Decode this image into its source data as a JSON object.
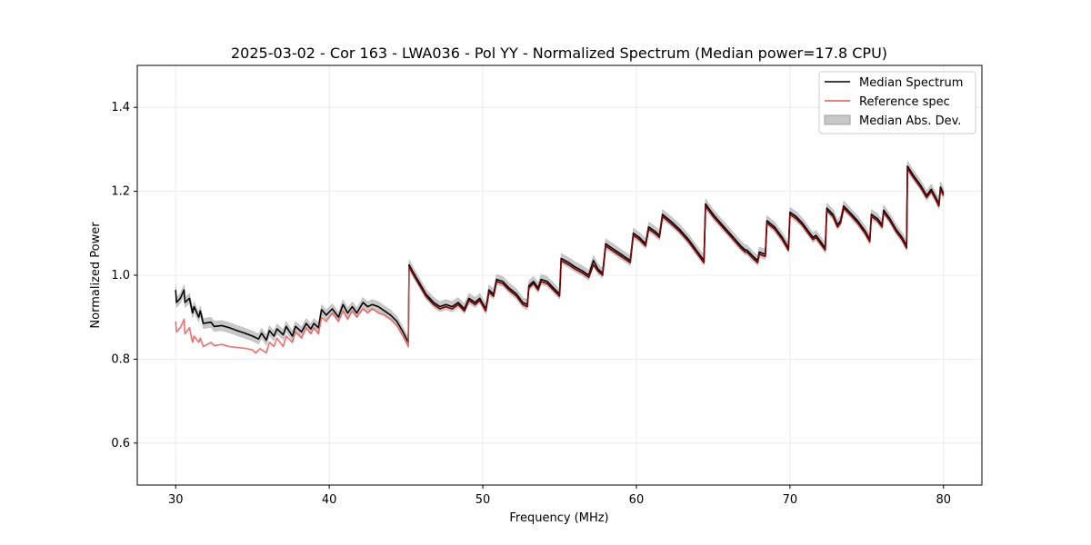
{
  "chart_data": {
    "type": "line",
    "title": "2025-03-02 - Cor 163 - LWA036 - Pol YY - Normalized Spectrum (Median power=17.8 CPU)",
    "xlabel": "Frequency (MHz)",
    "ylabel": "Normalized Power",
    "xlim": [
      27.5,
      82.5
    ],
    "ylim": [
      0.5,
      1.5
    ],
    "xticks": [
      30,
      40,
      50,
      60,
      70,
      80
    ],
    "yticks": [
      0.6,
      0.8,
      1.0,
      1.2,
      1.4
    ],
    "grid": true,
    "legend_position": "top-right",
    "colors": {
      "median": "#000000",
      "reference": "#ee5555",
      "mad": "#c8c8c8",
      "overlap": "#7a0000"
    },
    "series": [
      {
        "name": "Median Spectrum",
        "points": [
          [
            30.0,
            0.965
          ],
          [
            30.05,
            0.935
          ],
          [
            30.3,
            0.945
          ],
          [
            30.55,
            0.965
          ],
          [
            30.6,
            0.935
          ],
          [
            30.9,
            0.945
          ],
          [
            31.1,
            0.91
          ],
          [
            31.2,
            0.925
          ],
          [
            31.5,
            0.9
          ],
          [
            31.6,
            0.915
          ],
          [
            31.8,
            0.885
          ],
          [
            32.3,
            0.888
          ],
          [
            32.5,
            0.878
          ],
          [
            33.0,
            0.88
          ],
          [
            33.5,
            0.875
          ],
          [
            34.0,
            0.868
          ],
          [
            34.5,
            0.862
          ],
          [
            35.0,
            0.855
          ],
          [
            35.4,
            0.848
          ],
          [
            35.6,
            0.862
          ],
          [
            35.9,
            0.845
          ],
          [
            36.1,
            0.868
          ],
          [
            36.4,
            0.855
          ],
          [
            36.6,
            0.872
          ],
          [
            37.0,
            0.858
          ],
          [
            37.2,
            0.878
          ],
          [
            37.6,
            0.855
          ],
          [
            37.8,
            0.878
          ],
          [
            38.2,
            0.865
          ],
          [
            38.5,
            0.885
          ],
          [
            38.8,
            0.872
          ],
          [
            39.0,
            0.885
          ],
          [
            39.3,
            0.875
          ],
          [
            39.5,
            0.918
          ],
          [
            39.8,
            0.905
          ],
          [
            40.2,
            0.92
          ],
          [
            40.6,
            0.9
          ],
          [
            40.9,
            0.93
          ],
          [
            41.2,
            0.91
          ],
          [
            41.5,
            0.925
          ],
          [
            41.8,
            0.91
          ],
          [
            42.2,
            0.935
          ],
          [
            42.5,
            0.925
          ],
          [
            42.8,
            0.93
          ],
          [
            43.2,
            0.925
          ],
          [
            43.6,
            0.915
          ],
          [
            44.0,
            0.905
          ],
          [
            44.4,
            0.89
          ],
          [
            44.8,
            0.865
          ],
          [
            45.15,
            0.84
          ],
          [
            45.2,
            1.025
          ],
          [
            45.5,
            1.005
          ],
          [
            45.9,
            0.98
          ],
          [
            46.3,
            0.955
          ],
          [
            46.8,
            0.935
          ],
          [
            47.2,
            0.925
          ],
          [
            47.6,
            0.93
          ],
          [
            48.0,
            0.925
          ],
          [
            48.4,
            0.935
          ],
          [
            48.8,
            0.92
          ],
          [
            49.1,
            0.945
          ],
          [
            49.5,
            0.935
          ],
          [
            49.8,
            0.945
          ],
          [
            50.2,
            0.92
          ],
          [
            50.4,
            0.965
          ],
          [
            50.7,
            0.955
          ],
          [
            50.9,
            0.99
          ],
          [
            51.3,
            0.985
          ],
          [
            51.7,
            0.97
          ],
          [
            52.2,
            0.955
          ],
          [
            52.6,
            0.935
          ],
          [
            52.9,
            0.93
          ],
          [
            53.0,
            0.975
          ],
          [
            53.3,
            0.985
          ],
          [
            53.6,
            0.97
          ],
          [
            53.8,
            0.99
          ],
          [
            54.2,
            0.985
          ],
          [
            54.6,
            0.97
          ],
          [
            55.0,
            0.955
          ],
          [
            55.1,
            1.04
          ],
          [
            55.6,
            1.03
          ],
          [
            56.0,
            1.02
          ],
          [
            56.5,
            1.01
          ],
          [
            56.9,
            1.0
          ],
          [
            57.2,
            1.035
          ],
          [
            57.5,
            1.015
          ],
          [
            57.8,
            1.005
          ],
          [
            58.0,
            1.075
          ],
          [
            58.4,
            1.065
          ],
          [
            58.8,
            1.055
          ],
          [
            59.2,
            1.045
          ],
          [
            59.6,
            1.035
          ],
          [
            59.8,
            1.1
          ],
          [
            60.2,
            1.09
          ],
          [
            60.6,
            1.075
          ],
          [
            60.8,
            1.115
          ],
          [
            61.2,
            1.105
          ],
          [
            61.5,
            1.095
          ],
          [
            61.7,
            1.145
          ],
          [
            62.2,
            1.13
          ],
          [
            62.8,
            1.11
          ],
          [
            63.4,
            1.085
          ],
          [
            64.0,
            1.055
          ],
          [
            64.4,
            1.035
          ],
          [
            64.5,
            1.17
          ],
          [
            65.0,
            1.145
          ],
          [
            65.6,
            1.12
          ],
          [
            66.2,
            1.095
          ],
          [
            66.8,
            1.07
          ],
          [
            67.1,
            1.06
          ],
          [
            67.2,
            1.06
          ],
          [
            67.6,
            1.045
          ],
          [
            67.9,
            1.035
          ],
          [
            68.0,
            1.055
          ],
          [
            68.4,
            1.05
          ],
          [
            68.5,
            1.13
          ],
          [
            69.0,
            1.115
          ],
          [
            69.5,
            1.09
          ],
          [
            69.9,
            1.065
          ],
          [
            70.0,
            1.15
          ],
          [
            70.4,
            1.14
          ],
          [
            70.8,
            1.125
          ],
          [
            71.2,
            1.105
          ],
          [
            71.5,
            1.09
          ],
          [
            71.7,
            1.095
          ],
          [
            72.0,
            1.08
          ],
          [
            72.3,
            1.065
          ],
          [
            72.4,
            1.16
          ],
          [
            72.8,
            1.145
          ],
          [
            73.1,
            1.12
          ],
          [
            73.3,
            1.13
          ],
          [
            73.5,
            1.165
          ],
          [
            73.9,
            1.15
          ],
          [
            74.4,
            1.13
          ],
          [
            74.9,
            1.105
          ],
          [
            75.2,
            1.085
          ],
          [
            75.3,
            1.145
          ],
          [
            75.7,
            1.135
          ],
          [
            76.0,
            1.12
          ],
          [
            76.1,
            1.155
          ],
          [
            76.5,
            1.135
          ],
          [
            76.9,
            1.11
          ],
          [
            77.3,
            1.09
          ],
          [
            77.6,
            1.07
          ],
          [
            77.65,
            1.26
          ],
          [
            78.0,
            1.24
          ],
          [
            78.5,
            1.215
          ],
          [
            78.9,
            1.19
          ],
          [
            79.2,
            1.205
          ],
          [
            79.5,
            1.185
          ],
          [
            79.7,
            1.17
          ],
          [
            79.8,
            1.21
          ],
          [
            80.0,
            1.195
          ]
        ]
      },
      {
        "name": "Reference spec",
        "points": [
          [
            30.0,
            0.89
          ],
          [
            30.05,
            0.865
          ],
          [
            30.3,
            0.875
          ],
          [
            30.55,
            0.895
          ],
          [
            30.6,
            0.86
          ],
          [
            30.9,
            0.875
          ],
          [
            31.1,
            0.84
          ],
          [
            31.2,
            0.855
          ],
          [
            31.5,
            0.84
          ],
          [
            31.6,
            0.85
          ],
          [
            31.8,
            0.83
          ],
          [
            32.3,
            0.84
          ],
          [
            32.5,
            0.832
          ],
          [
            33.0,
            0.835
          ],
          [
            33.5,
            0.83
          ],
          [
            34.0,
            0.828
          ],
          [
            34.5,
            0.826
          ],
          [
            35.0,
            0.822
          ],
          [
            35.2,
            0.815
          ],
          [
            35.5,
            0.825
          ],
          [
            35.9,
            0.815
          ],
          [
            36.1,
            0.84
          ],
          [
            36.4,
            0.83
          ],
          [
            36.6,
            0.85
          ],
          [
            37.0,
            0.83
          ],
          [
            37.2,
            0.855
          ],
          [
            37.6,
            0.84
          ],
          [
            37.8,
            0.865
          ],
          [
            38.2,
            0.85
          ],
          [
            38.5,
            0.875
          ],
          [
            38.8,
            0.86
          ],
          [
            39.0,
            0.875
          ],
          [
            39.3,
            0.86
          ],
          [
            39.5,
            0.9
          ],
          [
            39.8,
            0.89
          ],
          [
            40.2,
            0.91
          ],
          [
            40.6,
            0.89
          ],
          [
            40.9,
            0.915
          ],
          [
            41.2,
            0.895
          ],
          [
            41.5,
            0.915
          ],
          [
            41.8,
            0.9
          ],
          [
            42.2,
            0.92
          ],
          [
            42.5,
            0.91
          ],
          [
            42.8,
            0.92
          ],
          [
            43.2,
            0.91
          ],
          [
            43.6,
            0.905
          ],
          [
            44.0,
            0.895
          ],
          [
            44.4,
            0.88
          ],
          [
            44.8,
            0.855
          ],
          [
            45.15,
            0.83
          ],
          [
            45.2,
            1.02
          ],
          [
            45.5,
            1.0
          ],
          [
            45.9,
            0.975
          ],
          [
            46.3,
            0.95
          ],
          [
            46.8,
            0.93
          ],
          [
            47.2,
            0.92
          ],
          [
            47.6,
            0.925
          ],
          [
            48.0,
            0.92
          ],
          [
            48.4,
            0.93
          ],
          [
            48.8,
            0.915
          ],
          [
            49.1,
            0.94
          ],
          [
            49.5,
            0.93
          ],
          [
            49.8,
            0.94
          ],
          [
            50.2,
            0.915
          ],
          [
            50.4,
            0.96
          ],
          [
            50.7,
            0.95
          ],
          [
            50.9,
            0.985
          ],
          [
            51.3,
            0.98
          ],
          [
            51.7,
            0.965
          ],
          [
            52.2,
            0.95
          ],
          [
            52.6,
            0.93
          ],
          [
            52.9,
            0.925
          ],
          [
            53.0,
            0.97
          ],
          [
            53.3,
            0.98
          ],
          [
            53.6,
            0.965
          ],
          [
            53.8,
            0.985
          ],
          [
            54.2,
            0.98
          ],
          [
            54.6,
            0.965
          ],
          [
            55.0,
            0.95
          ],
          [
            55.1,
            1.035
          ],
          [
            55.6,
            1.025
          ],
          [
            56.0,
            1.015
          ],
          [
            56.5,
            1.005
          ],
          [
            56.9,
            0.995
          ],
          [
            57.2,
            1.025
          ],
          [
            57.5,
            1.01
          ],
          [
            57.8,
            1.0
          ],
          [
            58.0,
            1.07
          ],
          [
            58.4,
            1.06
          ],
          [
            58.8,
            1.05
          ],
          [
            59.2,
            1.04
          ],
          [
            59.6,
            1.03
          ],
          [
            59.8,
            1.095
          ],
          [
            60.2,
            1.085
          ],
          [
            60.6,
            1.07
          ],
          [
            60.8,
            1.11
          ],
          [
            61.2,
            1.1
          ],
          [
            61.5,
            1.09
          ],
          [
            61.7,
            1.14
          ],
          [
            62.2,
            1.125
          ],
          [
            62.8,
            1.105
          ],
          [
            63.4,
            1.08
          ],
          [
            64.0,
            1.05
          ],
          [
            64.4,
            1.03
          ],
          [
            64.5,
            1.165
          ],
          [
            65.0,
            1.14
          ],
          [
            65.6,
            1.115
          ],
          [
            66.2,
            1.09
          ],
          [
            66.8,
            1.065
          ],
          [
            67.1,
            1.055
          ],
          [
            67.2,
            1.055
          ],
          [
            67.6,
            1.04
          ],
          [
            67.9,
            1.03
          ],
          [
            68.0,
            1.05
          ],
          [
            68.4,
            1.045
          ],
          [
            68.5,
            1.125
          ],
          [
            69.0,
            1.11
          ],
          [
            69.5,
            1.085
          ],
          [
            69.9,
            1.06
          ],
          [
            70.0,
            1.145
          ],
          [
            70.4,
            1.135
          ],
          [
            70.8,
            1.12
          ],
          [
            71.2,
            1.1
          ],
          [
            71.5,
            1.085
          ],
          [
            71.7,
            1.09
          ],
          [
            72.0,
            1.075
          ],
          [
            72.3,
            1.06
          ],
          [
            72.4,
            1.155
          ],
          [
            72.8,
            1.14
          ],
          [
            73.1,
            1.115
          ],
          [
            73.3,
            1.125
          ],
          [
            73.5,
            1.16
          ],
          [
            73.9,
            1.145
          ],
          [
            74.4,
            1.125
          ],
          [
            74.9,
            1.1
          ],
          [
            75.2,
            1.08
          ],
          [
            75.3,
            1.14
          ],
          [
            75.7,
            1.13
          ],
          [
            76.0,
            1.115
          ],
          [
            76.1,
            1.15
          ],
          [
            76.5,
            1.13
          ],
          [
            76.9,
            1.105
          ],
          [
            77.3,
            1.085
          ],
          [
            77.6,
            1.065
          ],
          [
            77.65,
            1.255
          ],
          [
            78.0,
            1.235
          ],
          [
            78.5,
            1.21
          ],
          [
            78.9,
            1.185
          ],
          [
            79.2,
            1.2
          ],
          [
            79.5,
            1.18
          ],
          [
            79.7,
            1.165
          ],
          [
            79.8,
            1.205
          ],
          [
            80.0,
            1.19
          ]
        ]
      }
    ],
    "band": {
      "name": "Median Abs. Dev.",
      "half_width": 0.012
    },
    "legend": [
      "Median Spectrum",
      "Reference spec",
      "Median Abs. Dev."
    ]
  }
}
